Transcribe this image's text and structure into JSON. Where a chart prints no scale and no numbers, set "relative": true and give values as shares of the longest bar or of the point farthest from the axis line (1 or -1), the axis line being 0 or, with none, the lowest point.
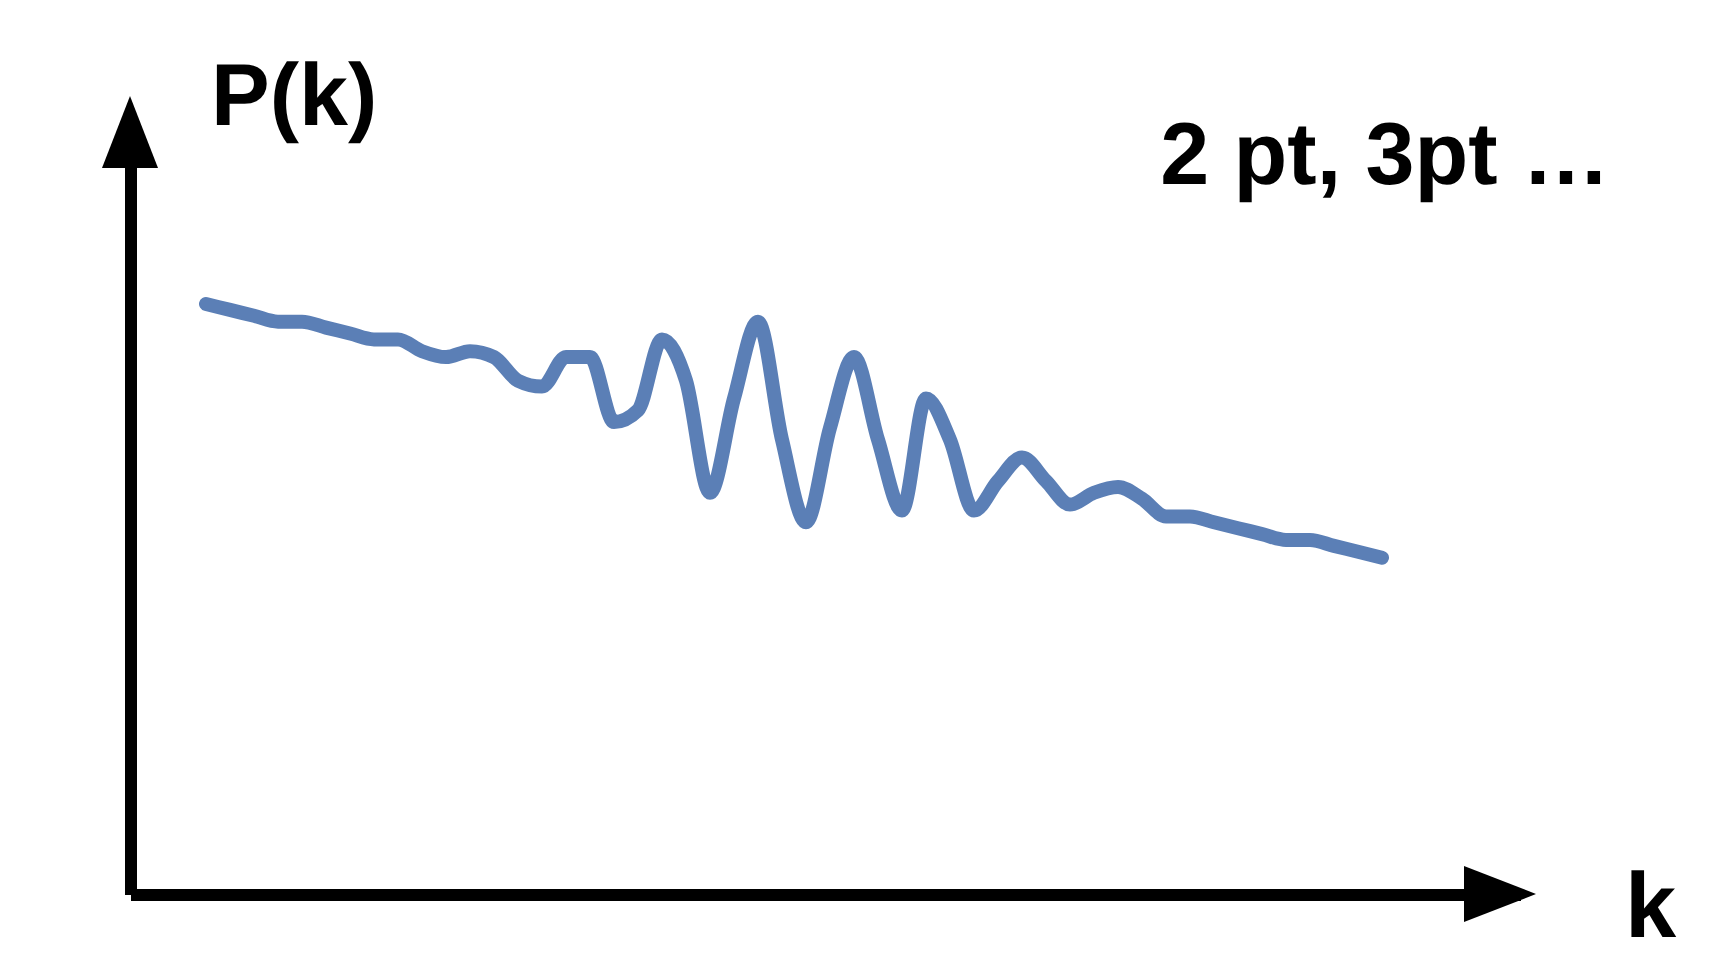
{
  "chart_data": {
    "type": "line",
    "relative": true,
    "xlabel": "k",
    "ylabel": "P(k)",
    "annotations": [
      "2 pt, 3pt …"
    ],
    "categories": [
      null,
      null,
      null,
      null,
      null,
      null,
      null,
      null,
      null,
      null,
      null,
      null,
      null,
      null,
      null,
      null,
      null,
      null,
      null,
      null,
      null,
      null,
      null,
      null,
      null,
      null,
      null,
      null,
      null,
      null,
      null,
      null,
      null,
      null,
      null,
      null,
      null,
      null,
      null,
      null,
      null,
      null,
      null,
      null,
      null,
      null,
      null,
      null,
      null,
      null
    ],
    "series": [
      {
        "color": "#5b7fb6",
        "values": [
          1.0,
          0.99,
          0.98,
          0.97,
          0.97,
          0.96,
          0.95,
          0.94,
          0.94,
          0.92,
          0.91,
          0.92,
          0.91,
          0.87,
          0.86,
          0.91,
          0.91,
          0.8,
          0.82,
          0.94,
          0.87,
          0.68,
          0.84,
          0.97,
          0.77,
          0.63,
          0.79,
          0.91,
          0.77,
          0.65,
          0.84,
          0.77,
          0.65,
          0.7,
          0.74,
          0.7,
          0.66,
          0.68,
          0.69,
          0.67,
          0.64,
          0.64,
          0.63,
          0.62,
          0.61,
          0.6,
          0.6,
          0.59,
          0.58,
          0.57
        ]
      }
    ]
  }
}
